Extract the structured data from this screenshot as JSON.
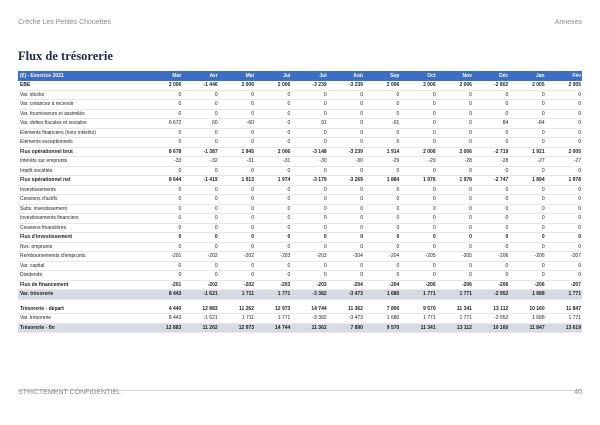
{
  "header": {
    "company": "Crèche Les Petites Chouettes",
    "section": "Annexes"
  },
  "title": "Flux de trésorerie",
  "table": {
    "columns": [
      "(€) - Exercice 2021",
      "Mar",
      "Avr",
      "Mai",
      "Jui",
      "Jul",
      "Aoû",
      "Sep",
      "Oct",
      "Nov",
      "Déc",
      "Jan",
      "Fév"
    ],
    "rows": [
      {
        "style": "bold",
        "label": "EBE",
        "values": [
          "2 006",
          "-1 446",
          "2 006",
          "2 006",
          "-3 239",
          "-3 239",
          "2 006",
          "2 006",
          "2 006",
          "-2 802",
          "2 005",
          "2 005"
        ]
      },
      {
        "style": "",
        "label": "Var. stocks",
        "values": [
          "0",
          "0",
          "0",
          "0",
          "0",
          "0",
          "0",
          "0",
          "0",
          "0",
          "0",
          "0"
        ]
      },
      {
        "style": "",
        "label": "Var. créances à recevoir",
        "values": [
          "0",
          "0",
          "0",
          "0",
          "0",
          "0",
          "0",
          "0",
          "0",
          "0",
          "0",
          "0"
        ]
      },
      {
        "style": "",
        "label": "Var. fournisseurs et assimilés",
        "values": [
          "0",
          "0",
          "0",
          "0",
          "0",
          "0",
          "0",
          "0",
          "0",
          "0",
          "0",
          "0"
        ]
      },
      {
        "style": "",
        "label": "Var. dettes fiscales et sociales",
        "values": [
          "6 672",
          "60",
          "-60",
          "0",
          "91",
          "0",
          "-91",
          "0",
          "0",
          "84",
          "-84",
          "0"
        ]
      },
      {
        "style": "",
        "label": "Eléments financiers (hors intérêts)",
        "values": [
          "0",
          "0",
          "0",
          "0",
          "0",
          "0",
          "0",
          "0",
          "0",
          "0",
          "0",
          "0"
        ]
      },
      {
        "style": "",
        "label": "Eléments exceptionnels",
        "values": [
          "0",
          "0",
          "0",
          "0",
          "0",
          "0",
          "0",
          "0",
          "0",
          "0",
          "0",
          "0"
        ]
      },
      {
        "style": "bold",
        "label": "Flux opérationnel brut",
        "values": [
          "8 678",
          "-1 387",
          "1 945",
          "2 006",
          "-3 148",
          "-3 239",
          "1 914",
          "2 006",
          "2 006",
          "-2 719",
          "1 921",
          "2 005"
        ]
      },
      {
        "style": "",
        "label": "Intérêts sur emprunts",
        "values": [
          "-33",
          "-32",
          "-31",
          "-31",
          "-30",
          "-30",
          "-29",
          "-29",
          "-28",
          "-28",
          "-27",
          "-27"
        ]
      },
      {
        "style": "",
        "label": "Impôt sociétés",
        "values": [
          "0",
          "0",
          "0",
          "0",
          "0",
          "0",
          "0",
          "0",
          "0",
          "0",
          "0",
          "0"
        ]
      },
      {
        "style": "bold",
        "label": "Flux opérationnel net",
        "values": [
          "8 644",
          "-1 419",
          "1 913",
          "1 974",
          "-3 179",
          "-3 269",
          "1 884",
          "1 976",
          "1 978",
          "-2 747",
          "1 894",
          "1 978"
        ]
      },
      {
        "style": "",
        "label": "Investissements",
        "values": [
          "0",
          "0",
          "0",
          "0",
          "0",
          "0",
          "0",
          "0",
          "0",
          "0",
          "0",
          "0"
        ]
      },
      {
        "style": "",
        "label": "Cessions d'actifs",
        "values": [
          "0",
          "0",
          "0",
          "0",
          "0",
          "0",
          "0",
          "0",
          "0",
          "0",
          "0",
          "0"
        ]
      },
      {
        "style": "",
        "label": "Subv. investissement",
        "values": [
          "0",
          "0",
          "0",
          "0",
          "0",
          "0",
          "0",
          "0",
          "0",
          "0",
          "0",
          "0"
        ]
      },
      {
        "style": "",
        "label": "Investissements financiers",
        "values": [
          "0",
          "0",
          "0",
          "0",
          "0",
          "0",
          "0",
          "0",
          "0",
          "0",
          "0",
          "0"
        ]
      },
      {
        "style": "",
        "label": "Cessions financières",
        "values": [
          "0",
          "0",
          "0",
          "0",
          "0",
          "0",
          "0",
          "0",
          "0",
          "0",
          "0",
          "0"
        ]
      },
      {
        "style": "bold",
        "label": "Flux d'investissement",
        "values": [
          "0",
          "0",
          "0",
          "0",
          "0",
          "0",
          "0",
          "0",
          "0",
          "0",
          "0",
          "0"
        ]
      },
      {
        "style": "",
        "label": "Nvx. emprunts",
        "values": [
          "0",
          "0",
          "0",
          "0",
          "0",
          "0",
          "0",
          "0",
          "0",
          "0",
          "0",
          "0"
        ]
      },
      {
        "style": "",
        "label": "Remboursements d'emprunts",
        "values": [
          "-201",
          "-202",
          "-202",
          "-203",
          "-203",
          "-204",
          "-204",
          "-205",
          "-205",
          "-206",
          "-206",
          "-207"
        ]
      },
      {
        "style": "",
        "label": "Var. capital",
        "values": [
          "0",
          "0",
          "0",
          "0",
          "0",
          "0",
          "0",
          "0",
          "0",
          "0",
          "0",
          "0"
        ]
      },
      {
        "style": "",
        "label": "Dividende",
        "values": [
          "0",
          "0",
          "0",
          "0",
          "0",
          "0",
          "0",
          "0",
          "0",
          "0",
          "0",
          "0"
        ]
      },
      {
        "style": "bold",
        "label": "Flux de financement",
        "values": [
          "-201",
          "-202",
          "-202",
          "-203",
          "-203",
          "-204",
          "-204",
          "-206",
          "-206",
          "-206",
          "-206",
          "-207"
        ]
      },
      {
        "style": "shaded",
        "label": "Var. trésorerie",
        "values": [
          "8 443",
          "-1 621",
          "1 711",
          "1 771",
          "-3 382",
          "-3 473",
          "1 680",
          "1 771",
          "1 771",
          "-2 952",
          "1 688",
          "1 771"
        ]
      },
      {
        "style": "spacer",
        "label": "",
        "values": [
          "",
          "",
          "",
          "",
          "",
          "",
          "",
          "",
          "",
          "",
          "",
          ""
        ]
      },
      {
        "style": "bold",
        "label": "Trésorerie - départ",
        "values": [
          "4 440",
          "12 883",
          "11 262",
          "12 973",
          "14 744",
          "11 362",
          "7 890",
          "9 570",
          "11 341",
          "13 112",
          "10 160",
          "11 847"
        ]
      },
      {
        "style": "",
        "label": "Var. trésorerie",
        "values": [
          "8 443",
          "-1 621",
          "1 711",
          "1 771",
          "-3 382",
          "-3 473",
          "1 680",
          "1 771",
          "1 771",
          "-2 952",
          "1 688",
          "1 771"
        ]
      },
      {
        "style": "shaded",
        "label": "Trésorerie - fin",
        "values": [
          "12 883",
          "11 262",
          "12 973",
          "14 744",
          "11 362",
          "7 890",
          "9 570",
          "11 341",
          "13 112",
          "10 160",
          "11 847",
          "13 619"
        ]
      }
    ]
  },
  "footer": {
    "confidential": "STRICTEMENT CONFIDENTIEL",
    "page_number": "40"
  }
}
